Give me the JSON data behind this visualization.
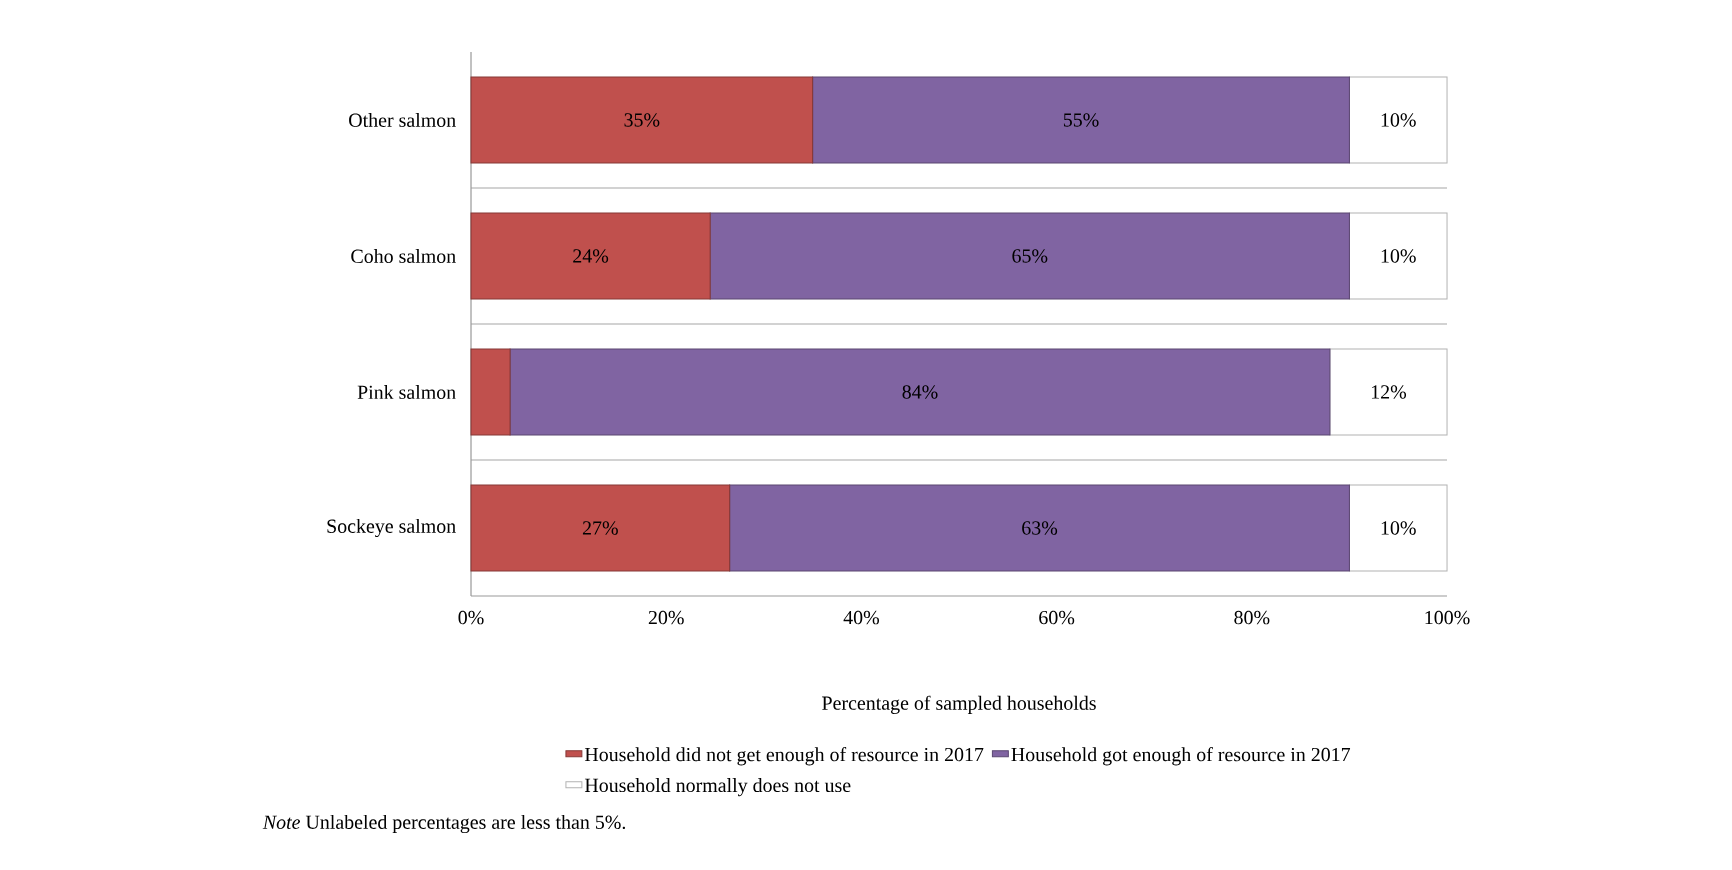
{
  "chart_data": {
    "type": "bar",
    "orientation": "horizontal",
    "stacked": true,
    "categories": [
      "Other salmon",
      "Coho salmon",
      "Pink salmon",
      "Sockeye salmon"
    ],
    "series": [
      {
        "name": "Household did not get enough of resource in 2017",
        "color": "#c0504d",
        "values": [
          35,
          24.5,
          4,
          26.5
        ],
        "value_labels": [
          "35%",
          "24%",
          null,
          "27%"
        ]
      },
      {
        "name": "Household got enough of resource in 2017",
        "color": "#8064a2",
        "values": [
          55,
          65.5,
          84,
          63.5
        ],
        "value_labels": [
          "55%",
          "65%",
          "84%",
          "63%"
        ]
      },
      {
        "name": "Household normally does not use",
        "color": "#ffffff",
        "values": [
          10,
          10,
          12,
          10
        ],
        "value_labels": [
          "10%",
          "10%",
          "12%",
          "10%"
        ]
      }
    ],
    "xlabel": "Percentage of sampled households",
    "xlim": [
      0,
      100
    ],
    "xticks": [
      {
        "value": 0,
        "label": "0%"
      },
      {
        "value": 20,
        "label": "20%"
      },
      {
        "value": 40,
        "label": "40%"
      },
      {
        "value": 60,
        "label": "60%"
      },
      {
        "value": 80,
        "label": "80%"
      },
      {
        "value": 100,
        "label": "100%"
      }
    ],
    "grid": "y",
    "legend": "bottom",
    "annotations": [
      "*Note* Unlabeled percentages are less than 5%."
    ]
  }
}
